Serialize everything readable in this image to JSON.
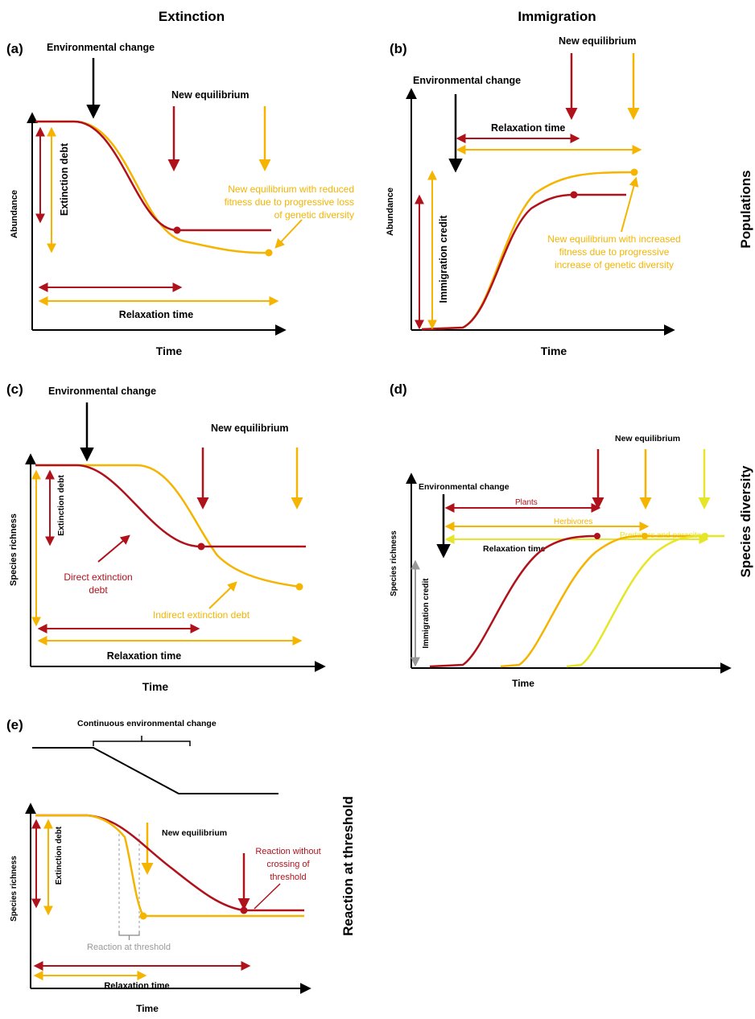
{
  "headers": {
    "extinction": "Extinction",
    "immigration": "Immigration"
  },
  "side_labels": {
    "populations": "Populations",
    "species_diversity": "Species diversity",
    "reaction_at_threshold": "Reaction at threshold"
  },
  "colors": {
    "red": "#b0121b",
    "orange": "#f5b400",
    "yellow": "#e6e628",
    "black": "#000000",
    "gray": "#999999"
  },
  "panel_a": {
    "letter": "(a)",
    "environmental_change": "Environmental change",
    "new_equilibrium": "New equilibrium",
    "note": [
      "New equilibrium with reduced",
      "fitness due to progressive loss",
      "of genetic diversity"
    ],
    "extinction_debt": "Extinction debt",
    "relaxation_time": "Relaxation time",
    "y_axis": "Abundance",
    "x_axis": "Time"
  },
  "panel_b": {
    "letter": "(b)",
    "environmental_change": "Environmental change",
    "new_equilibrium": "New equilibrium",
    "relaxation_time": "Relaxation time",
    "note": [
      "New equilibrium with increased",
      "fitness due to progressive",
      "increase of genetic diversity"
    ],
    "immigration_credit": "Immigration credit",
    "y_axis": "Abundance",
    "x_axis": "Time"
  },
  "panel_c": {
    "letter": "(c)",
    "environmental_change": "Environmental change",
    "new_equilibrium": "New equilibrium",
    "extinction_debt": "Extinction debt",
    "direct_debt": [
      "Direct extinction",
      "debt"
    ],
    "indirect_debt": "Indirect extinction debt",
    "relaxation_time": "Relaxation time",
    "y_axis": "Species richness",
    "x_axis": "Time"
  },
  "panel_d": {
    "letter": "(d)",
    "new_equilibrium": "New equilibrium",
    "environmental_change": "Environmental change",
    "plants": "Plants",
    "herbivores": "Herbivores",
    "predators": "Predators and parasites",
    "relaxation_time": "Relaxation time",
    "immigration_credit": "Immigration credit",
    "y_axis": "Species richness",
    "x_axis": "Time"
  },
  "panel_e": {
    "letter": "(e)",
    "continuous_change": "Continuous environmental change",
    "new_equilibrium": "New equilibrium",
    "reaction_without": [
      "Reaction without",
      "crossing of",
      "threshold"
    ],
    "extinction_debt": "Extinction debt",
    "reaction_at_threshold": "Reaction at threshold",
    "relaxation_time": "Relaxation time",
    "y_axis": "Species richness",
    "x_axis": "Time"
  }
}
